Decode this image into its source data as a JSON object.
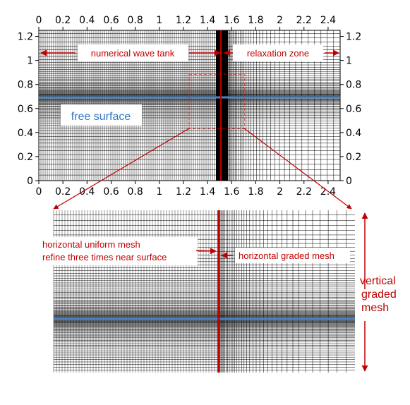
{
  "top_plot": {
    "x_ticks": [
      "0",
      "0.2",
      "0.4",
      "0.6",
      "0.8",
      "1",
      "1.2",
      "1.4",
      "1.6",
      "1.8",
      "2",
      "2.2",
      "2.4"
    ],
    "x_tick_values": [
      0,
      0.2,
      0.4,
      0.6,
      0.8,
      1,
      1.2,
      1.4,
      1.6,
      1.8,
      2,
      2.2,
      2.4
    ],
    "y_ticks": [
      "0",
      "0.2",
      "0.4",
      "0.6",
      "0.8",
      "1",
      "1.2"
    ],
    "y_tick_values": [
      0,
      0.2,
      0.4,
      0.6,
      0.8,
      1,
      1.2
    ],
    "x_range": [
      0,
      2.5
    ],
    "y_range": [
      0,
      1.25
    ],
    "free_surface_level": 0.7,
    "relaxation_start": 1.5,
    "relaxation_end": 1.6
  },
  "labels": {
    "numerical_wave_tank": "numerical wave tank",
    "relaxation_zone": "relaxation zone",
    "free_surface": "free surface",
    "horizontal_uniform_line1": "horizontal uniform mesh",
    "horizontal_uniform_line2": "refine three times near surface",
    "horizontal_graded": "horizontal graded mesh",
    "vertical_graded_1": "vertical",
    "vertical_graded_2": "graded",
    "vertical_graded_3": "mesh"
  },
  "colors": {
    "annotation": "#c00000",
    "free_surface": "#4a86c5",
    "mesh": "#000000"
  }
}
